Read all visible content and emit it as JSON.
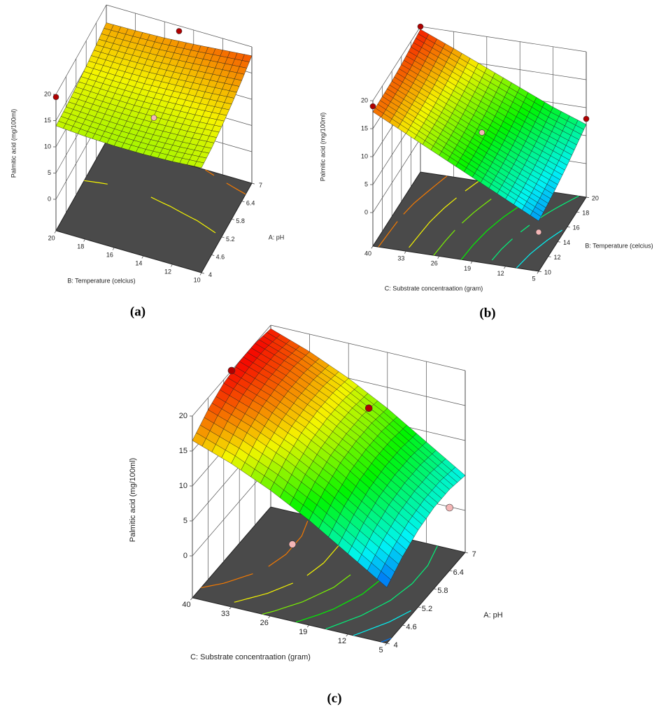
{
  "chart_data": [
    {
      "type": "surface",
      "label": "(a)",
      "xlabel": "A: pH",
      "ylabel": "B: Temperature (celcius)",
      "zlabel": "Palmitic acid (mg/100ml)",
      "xlim": [
        4,
        7
      ],
      "xticks": [
        4,
        4.6,
        5.2,
        5.8,
        6.4,
        7
      ],
      "ylim": [
        10,
        20
      ],
      "yticks": [
        10,
        12,
        14,
        16,
        18,
        20
      ],
      "zlim": [
        0,
        20
      ],
      "zticks": [
        0,
        5,
        10,
        15,
        20
      ],
      "x": [
        4,
        4.6,
        5.2,
        5.8,
        6.4,
        7
      ],
      "y": [
        10,
        12,
        14,
        16,
        18,
        20
      ],
      "z": [
        [
          14,
          14.3,
          15,
          15.9,
          17,
          18.3
        ],
        [
          13.6,
          13.9,
          14.6,
          15.5,
          16.6,
          17.8
        ],
        [
          13.4,
          13.7,
          14.4,
          15.2,
          16.2,
          17.3
        ],
        [
          13.4,
          13.7,
          14.3,
          15,
          15.9,
          16.9
        ],
        [
          13.6,
          13.9,
          14.4,
          15,
          15.8,
          16.7
        ],
        [
          14,
          14.2,
          14.6,
          15.1,
          15.8,
          16.6
        ]
      ],
      "points": {
        "x": [
          4,
          7,
          5.5
        ],
        "y": [
          20,
          15,
          15
        ],
        "z": [
          19.5,
          19,
          11
        ]
      }
    },
    {
      "type": "surface",
      "label": "(b)",
      "xlabel": "B: Temperature (celcius)",
      "ylabel": "C: Substrate concentraation (gram)",
      "zlabel": "Palmitic acid (mg/100ml)",
      "xlim": [
        10,
        20
      ],
      "xticks": [
        10,
        12,
        14,
        16,
        18,
        20
      ],
      "ylim": [
        5,
        40
      ],
      "yticks": [
        5,
        12,
        19,
        26,
        33,
        40
      ],
      "zlim": [
        0,
        20
      ],
      "zticks": [
        0,
        5,
        10,
        15,
        20
      ],
      "x": [
        10,
        12,
        14,
        16,
        18,
        20
      ],
      "y": [
        5,
        12,
        19,
        26,
        33,
        40
      ],
      "z": [
        [
          3,
          3.5,
          4.2,
          5,
          6,
          7
        ],
        [
          6,
          6.3,
          6.8,
          7.5,
          8.3,
          9.2
        ],
        [
          9,
          9.2,
          9.6,
          10.2,
          11,
          11.8
        ],
        [
          12,
          12.2,
          12.5,
          13,
          13.6,
          14.4
        ],
        [
          15,
          15.2,
          15.4,
          15.8,
          16.4,
          17
        ],
        [
          18,
          18.1,
          18.2,
          18.5,
          19,
          19.5
        ]
      ],
      "points": {
        "x": [
          10,
          20,
          15,
          20,
          10
        ],
        "y": [
          40,
          40,
          22,
          5,
          5
        ],
        "z": [
          19,
          20,
          10,
          8,
          1
        ]
      }
    },
    {
      "type": "surface",
      "label": "(c)",
      "xlabel": "A: pH",
      "ylabel": "C: Substrate concentraation (gram)",
      "zlabel": "Palmitic acid (mg/100ml)",
      "xlim": [
        4,
        7
      ],
      "xticks": [
        4,
        4.6,
        5.2,
        5.8,
        6.4,
        7
      ],
      "ylim": [
        5,
        40
      ],
      "yticks": [
        5,
        12,
        19,
        26,
        33,
        40
      ],
      "zlim": [
        0,
        20
      ],
      "zticks": [
        0,
        5,
        10,
        15,
        20
      ],
      "x": [
        4,
        4.6,
        5.2,
        5.8,
        6.4,
        7
      ],
      "y": [
        5,
        12,
        19,
        26,
        33,
        40
      ],
      "z": [
        [
          2,
          3.8,
          5,
          5.6,
          5.6,
          5
        ],
        [
          5.5,
          7.3,
          8.5,
          9,
          9,
          8.5
        ],
        [
          9,
          10.8,
          12,
          12.5,
          12.5,
          12
        ],
        [
          12,
          13.8,
          15,
          15.5,
          15.5,
          15
        ],
        [
          14.5,
          16.3,
          17.5,
          18,
          18,
          17.5
        ],
        [
          16.5,
          18.3,
          19.5,
          20,
          20,
          19.5
        ]
      ],
      "points": {
        "x": [
          5.5,
          6.5,
          4,
          6.4
        ],
        "y": [
          40,
          20,
          22,
          5
        ],
        "z": [
          20,
          14,
          5,
          3
        ]
      }
    }
  ]
}
